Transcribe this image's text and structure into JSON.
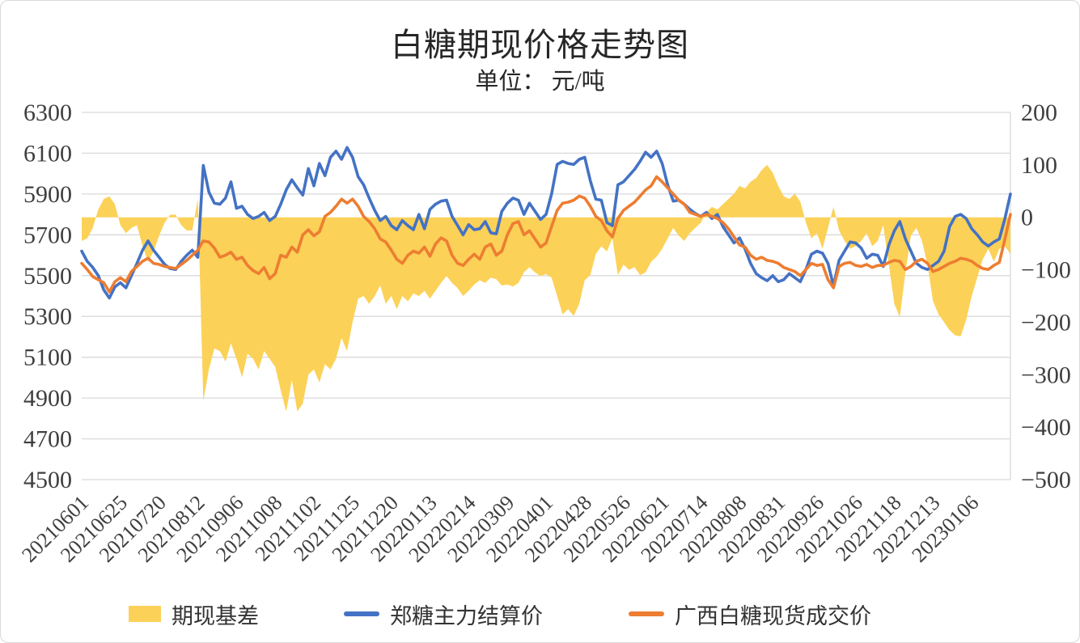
{
  "title": "白糖期现价格走势图",
  "subtitle": "单位： 元/吨",
  "colors": {
    "basis_area": "#FBD158",
    "futures_line": "#4472C4",
    "spot_line": "#ED7D31",
    "gridline": "#D9D9D9",
    "axis_text": "#3F3F3F"
  },
  "legend": {
    "basis_label": "期现基差",
    "futures_label": "郑糖主力结算价",
    "spot_label": "广西白糖现货成交价"
  },
  "chart_data": {
    "type": "combo: area (right axis) + 2 lines (left axis), daily time series",
    "title": "白糖期现价格走势图",
    "unit_label": "单位： 元/吨",
    "n": 169,
    "x_note": "169 evenly spaced samples from 20210601 to mid-Jan 2023; x tick placed at every 7th sample",
    "x_tick_labels": [
      "20210601",
      "20210625",
      "20210720",
      "20210812",
      "20210906",
      "20211008",
      "20211102",
      "20211125",
      "20211220",
      "20220113",
      "20220214",
      "20220309",
      "20220401",
      "20220428",
      "20220526",
      "20220621",
      "20220714",
      "20220808",
      "20220831",
      "20220926",
      "20221026",
      "20221118",
      "20221213",
      "20230106"
    ],
    "left_axis": {
      "min": 4500,
      "max": 6300,
      "ticks": [
        6300,
        6100,
        5900,
        5700,
        5500,
        5300,
        5100,
        4900,
        4700,
        4500
      ]
    },
    "right_axis": {
      "min": -500,
      "max": 200,
      "ticks": [
        200,
        100,
        0,
        -100,
        -200,
        -300,
        -400,
        -500
      ]
    },
    "grid": true,
    "legend_position": "bottom",
    "series": [
      {
        "name": "期现基差",
        "type": "area",
        "axis": "right",
        "color": "#FBD158",
        "values": [
          -45,
          -40,
          -20,
          15,
          35,
          40,
          25,
          -15,
          -30,
          -20,
          -15,
          -55,
          -85,
          -65,
          -35,
          -10,
          5,
          5,
          -15,
          -25,
          -25,
          35,
          -350,
          -290,
          -250,
          -255,
          -275,
          -240,
          -270,
          -305,
          -260,
          -270,
          -290,
          -255,
          -270,
          -285,
          -330,
          -370,
          -310,
          -370,
          -355,
          -300,
          -290,
          -315,
          -280,
          -290,
          -270,
          -230,
          -255,
          -200,
          -155,
          -150,
          -165,
          -150,
          -130,
          -165,
          -150,
          -175,
          -150,
          -160,
          -145,
          -150,
          -140,
          -155,
          -140,
          -125,
          -112,
          -125,
          -135,
          -150,
          -140,
          -128,
          -120,
          -125,
          -115,
          -118,
          -130,
          -128,
          -132,
          -125,
          -105,
          -95,
          -105,
          -112,
          -108,
          -115,
          -150,
          -185,
          -175,
          -188,
          -165,
          -120,
          -110,
          -70,
          -55,
          -65,
          -40,
          -110,
          -90,
          -100,
          -95,
          -110,
          -105,
          -85,
          -75,
          -60,
          -40,
          -20,
          -35,
          -45,
          -30,
          -20,
          -10,
          10,
          20,
          15,
          25,
          35,
          45,
          60,
          55,
          68,
          75,
          90,
          100,
          85,
          60,
          40,
          35,
          45,
          30,
          -10,
          -40,
          -30,
          -60,
          -20,
          20,
          -25,
          -45,
          -60,
          -55,
          -45,
          -30,
          -55,
          -45,
          -15,
          -90,
          -165,
          -190,
          -105,
          -35,
          -20,
          -45,
          -90,
          -160,
          -185,
          -200,
          -215,
          -225,
          -227,
          -195,
          -150,
          -115,
          -80,
          -60,
          -85,
          -60,
          -55,
          -70
        ]
      },
      {
        "name": "郑糖主力结算价",
        "type": "line",
        "axis": "left",
        "color": "#4472C4",
        "values": [
          5620,
          5570,
          5540,
          5500,
          5430,
          5390,
          5445,
          5465,
          5440,
          5500,
          5560,
          5625,
          5670,
          5625,
          5590,
          5555,
          5535,
          5530,
          5570,
          5600,
          5625,
          5590,
          6040,
          5910,
          5855,
          5850,
          5880,
          5960,
          5830,
          5840,
          5800,
          5780,
          5790,
          5810,
          5770,
          5790,
          5850,
          5920,
          5970,
          5930,
          5895,
          6025,
          5940,
          6050,
          5990,
          6080,
          6110,
          6070,
          6128,
          6080,
          5985,
          5945,
          5880,
          5820,
          5770,
          5790,
          5745,
          5725,
          5770,
          5745,
          5725,
          5800,
          5730,
          5825,
          5850,
          5865,
          5870,
          5790,
          5745,
          5700,
          5750,
          5725,
          5730,
          5765,
          5710,
          5705,
          5815,
          5855,
          5880,
          5870,
          5800,
          5855,
          5815,
          5775,
          5800,
          5900,
          6045,
          6060,
          6050,
          6045,
          6070,
          6080,
          5965,
          5875,
          5870,
          5760,
          5745,
          5945,
          5960,
          5990,
          6020,
          6060,
          6105,
          6080,
          6110,
          6050,
          5945,
          5865,
          5870,
          5850,
          5825,
          5805,
          5790,
          5810,
          5780,
          5800,
          5740,
          5700,
          5660,
          5685,
          5630,
          5560,
          5510,
          5490,
          5475,
          5500,
          5470,
          5480,
          5510,
          5490,
          5470,
          5530,
          5605,
          5620,
          5610,
          5560,
          5450,
          5575,
          5620,
          5665,
          5660,
          5635,
          5585,
          5605,
          5600,
          5545,
          5650,
          5720,
          5765,
          5680,
          5620,
          5560,
          5540,
          5530,
          5550,
          5570,
          5620,
          5740,
          5790,
          5800,
          5780,
          5730,
          5700,
          5665,
          5645,
          5665,
          5680,
          5780,
          5900
        ]
      },
      {
        "name": "广西白糖现货成交价",
        "type": "line",
        "axis": "left",
        "color": "#ED7D31",
        "values": [
          5560,
          5530,
          5495,
          5480,
          5465,
          5420,
          5470,
          5490,
          5470,
          5520,
          5545,
          5570,
          5585,
          5560,
          5555,
          5545,
          5540,
          5535,
          5555,
          5575,
          5600,
          5625,
          5670,
          5665,
          5635,
          5590,
          5600,
          5615,
          5580,
          5590,
          5550,
          5525,
          5510,
          5540,
          5485,
          5510,
          5600,
          5590,
          5640,
          5615,
          5700,
          5725,
          5695,
          5715,
          5790,
          5810,
          5840,
          5875,
          5855,
          5875,
          5840,
          5790,
          5765,
          5730,
          5680,
          5665,
          5625,
          5580,
          5560,
          5600,
          5620,
          5610,
          5640,
          5595,
          5655,
          5685,
          5670,
          5600,
          5560,
          5550,
          5580,
          5605,
          5580,
          5640,
          5655,
          5600,
          5620,
          5700,
          5755,
          5765,
          5700,
          5720,
          5680,
          5640,
          5660,
          5740,
          5820,
          5855,
          5860,
          5870,
          5890,
          5880,
          5840,
          5790,
          5770,
          5720,
          5690,
          5780,
          5820,
          5840,
          5860,
          5890,
          5920,
          5940,
          5985,
          5960,
          5930,
          5900,
          5870,
          5850,
          5810,
          5800,
          5790,
          5800,
          5790,
          5780,
          5760,
          5730,
          5690,
          5650,
          5640,
          5600,
          5580,
          5590,
          5575,
          5570,
          5560,
          5540,
          5530,
          5520,
          5500,
          5530,
          5560,
          5550,
          5555,
          5480,
          5440,
          5545,
          5560,
          5565,
          5550,
          5545,
          5555,
          5540,
          5550,
          5550,
          5565,
          5575,
          5570,
          5530,
          5545,
          5570,
          5580,
          5560,
          5520,
          5530,
          5545,
          5560,
          5570,
          5585,
          5580,
          5570,
          5550,
          5535,
          5530,
          5550,
          5565,
          5680,
          5800
        ]
      }
    ]
  }
}
